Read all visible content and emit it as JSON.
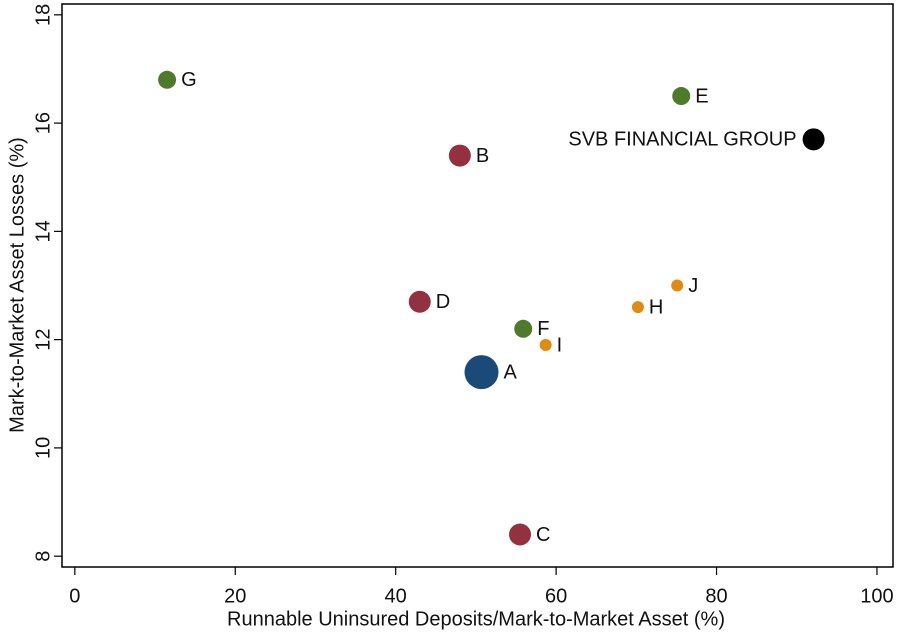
{
  "chart_data": {
    "type": "scatter",
    "x_label": "Runnable Uninsured Deposits/Mark-to-Market Asset (%)",
    "y_label": "Mark-to-Market Asset Losses (%)",
    "xlim": [
      -1.6,
      102
    ],
    "xticks": [
      0,
      20,
      40,
      60,
      80,
      100
    ],
    "ylim": [
      7.8,
      18.2
    ],
    "yticks": [
      8,
      10,
      12,
      14,
      16,
      18
    ],
    "points": [
      {
        "label": "G",
        "x": 11.5,
        "y": 16.8,
        "size": 9,
        "color": "#4e7a2c"
      },
      {
        "label": "E",
        "x": 75.6,
        "y": 16.5,
        "size": 9,
        "color": "#4e7a2c"
      },
      {
        "label": "SVB FINANCIAL GROUP",
        "x": 92.1,
        "y": 15.7,
        "size": 11,
        "color": "#000000"
      },
      {
        "label": "B",
        "x": 48.0,
        "y": 15.4,
        "size": 11,
        "color": "#923240"
      },
      {
        "label": "J",
        "x": 75.1,
        "y": 13.0,
        "size": 6,
        "color": "#e08a12"
      },
      {
        "label": "H",
        "x": 70.2,
        "y": 12.6,
        "size": 6,
        "color": "#e08a12"
      },
      {
        "label": "D",
        "x": 43.0,
        "y": 12.7,
        "size": 11,
        "color": "#923240"
      },
      {
        "label": "F",
        "x": 55.9,
        "y": 12.2,
        "size": 9,
        "color": "#4e7a2c"
      },
      {
        "label": "I",
        "x": 58.7,
        "y": 11.9,
        "size": 6,
        "color": "#e08a12"
      },
      {
        "label": "A",
        "x": 50.7,
        "y": 11.4,
        "size": 17,
        "color": "#1c4a78"
      },
      {
        "label": "C",
        "x": 55.5,
        "y": 8.4,
        "size": 11,
        "color": "#923240"
      }
    ]
  }
}
